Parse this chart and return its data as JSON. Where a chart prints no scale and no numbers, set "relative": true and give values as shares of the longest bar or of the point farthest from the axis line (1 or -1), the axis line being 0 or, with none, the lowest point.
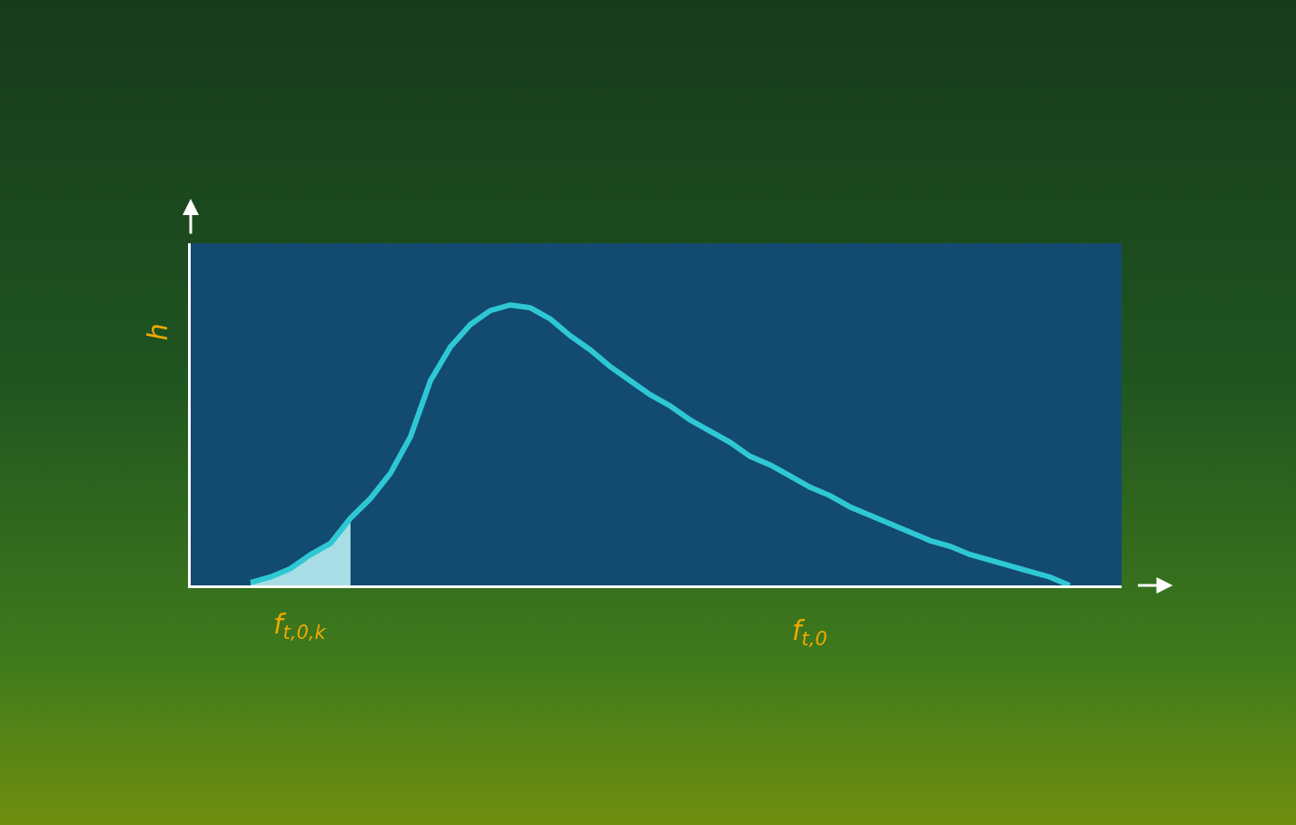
{
  "chart_data": {
    "type": "line",
    "relative": true,
    "xlabel": "f$_{t,0}$",
    "ylabel": "h",
    "annotations": [
      "f$_{t,0,k}$"
    ],
    "categories": [
      null,
      null,
      null,
      null,
      null,
      null,
      null,
      null,
      null,
      null,
      null,
      null,
      null,
      null,
      null,
      null,
      null,
      null,
      null,
      null,
      null,
      null,
      null,
      null,
      null,
      null,
      null,
      null,
      null,
      null,
      null,
      null,
      null,
      null,
      null,
      null,
      null,
      null,
      null,
      null,
      null,
      null
    ],
    "series": [
      {
        "type": "area",
        "color": "#a8dde6",
        "values": [
          0.01,
          0.03,
          0.06,
          0.11,
          0.15,
          0.24,
          null,
          null,
          null,
          null,
          null,
          null,
          null,
          null,
          null,
          null,
          null,
          null,
          null,
          null,
          null,
          null,
          null,
          null,
          null,
          null,
          null,
          null,
          null,
          null,
          null,
          null,
          null,
          null,
          null,
          null,
          null,
          null,
          null,
          null,
          null,
          null
        ]
      },
      {
        "color": "#2ec8d4",
        "values": [
          0.01,
          0.03,
          0.06,
          0.11,
          0.15,
          0.24,
          0.31,
          0.4,
          0.53,
          0.73,
          0.85,
          0.93,
          0.98,
          1,
          0.99,
          0.95,
          0.89,
          0.84,
          0.78,
          0.73,
          0.68,
          0.64,
          0.59,
          0.55,
          0.51,
          0.46,
          0.43,
          0.39,
          0.35,
          0.32,
          0.28,
          0.25,
          0.22,
          0.19,
          0.16,
          0.14,
          0.11,
          0.09,
          0.07,
          0.05,
          0.03,
          0
        ]
      }
    ]
  }
}
